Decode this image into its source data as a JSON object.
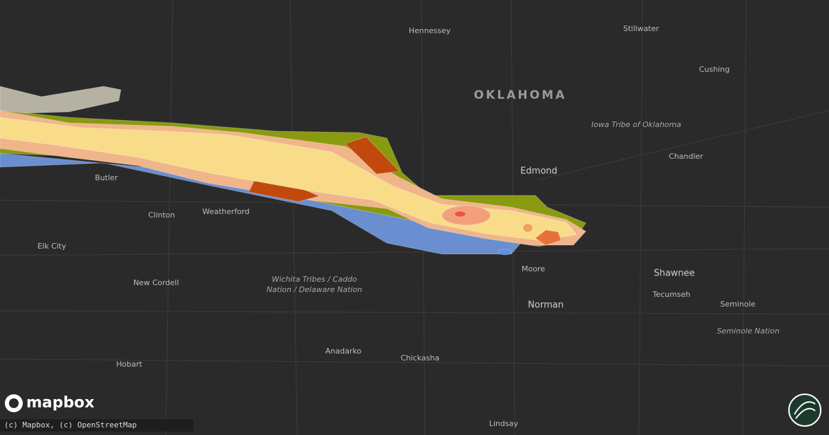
{
  "map": {
    "state_label": "OKLAHOMA",
    "places": [
      {
        "label": "Hennessey"
      },
      {
        "label": "Stillwater"
      },
      {
        "label": "Cushing"
      },
      {
        "label": "Chandler"
      },
      {
        "label": "Edmond"
      },
      {
        "label": "Butler"
      },
      {
        "label": "Clinton"
      },
      {
        "label": "Weatherford"
      },
      {
        "label": "Elk City"
      },
      {
        "label": "Moore"
      },
      {
        "label": "Shawnee"
      },
      {
        "label": "Tecumseh"
      },
      {
        "label": "Seminole"
      },
      {
        "label": "New Cordell"
      },
      {
        "label": "Norman"
      },
      {
        "label": "Hobart"
      },
      {
        "label": "Anadarko"
      },
      {
        "label": "Chickasha"
      },
      {
        "label": "Lindsay"
      }
    ],
    "regions": [
      {
        "label": "Iowa Tribe of Oklahoma"
      },
      {
        "label": "Seminole Nation"
      },
      {
        "label_lines": [
          "Wichita Tribes / Caddo",
          "Nation / Delaware Nation"
        ]
      }
    ],
    "logo": "mapbox",
    "attribution": "(c) Mapbox, (c) OpenStreetMap"
  }
}
